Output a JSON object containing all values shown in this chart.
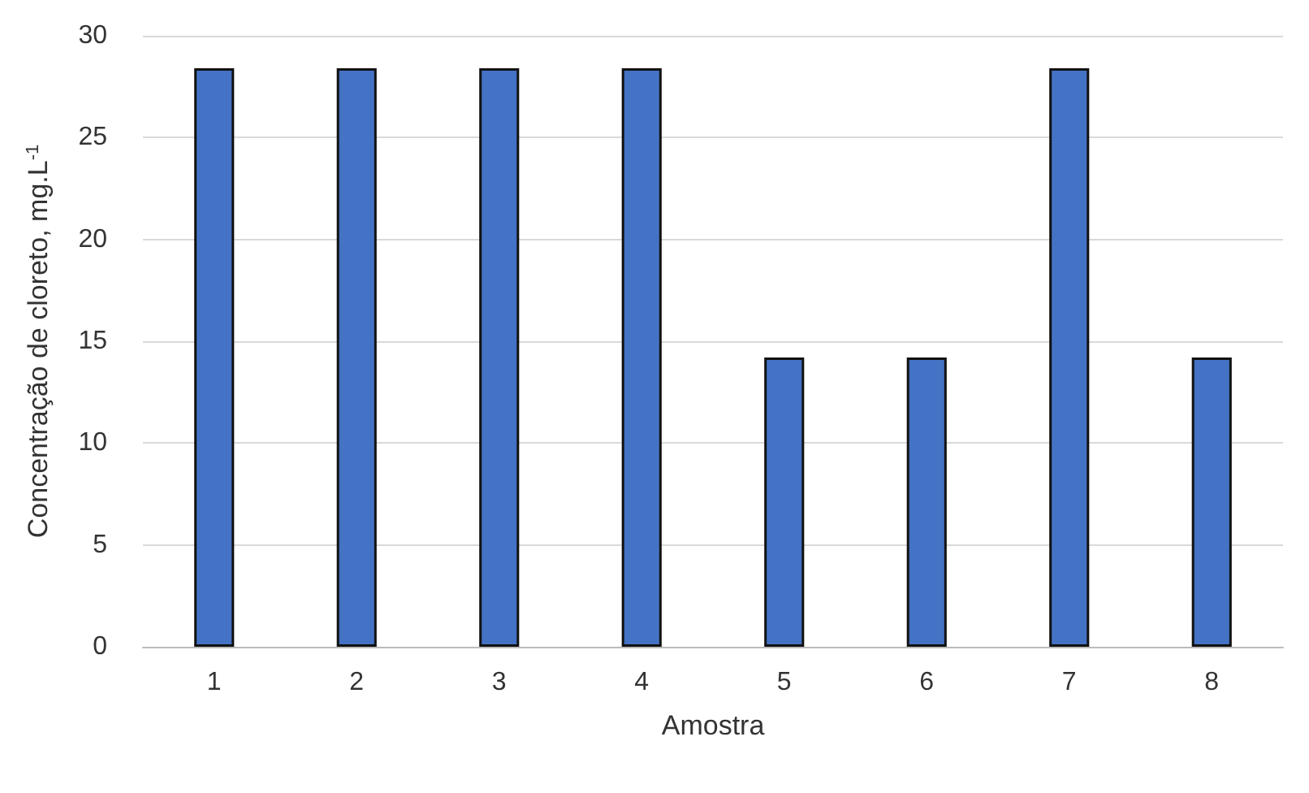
{
  "chart_data": {
    "type": "bar",
    "xlabel": "Amostra",
    "ylabel": "Concentração de cloreto, mg.L$^{-1}$",
    "categories": [
      "1",
      "2",
      "3",
      "4",
      "5",
      "6",
      "7",
      "8"
    ],
    "values": [
      28.4,
      28.4,
      28.4,
      28.4,
      14.2,
      14.2,
      28.4,
      14.2
    ],
    "color": "#4472c4",
    "ylim": [
      0,
      30
    ],
    "yticks": [
      0,
      5,
      10,
      15,
      20,
      25,
      30
    ],
    "grid": "y"
  }
}
